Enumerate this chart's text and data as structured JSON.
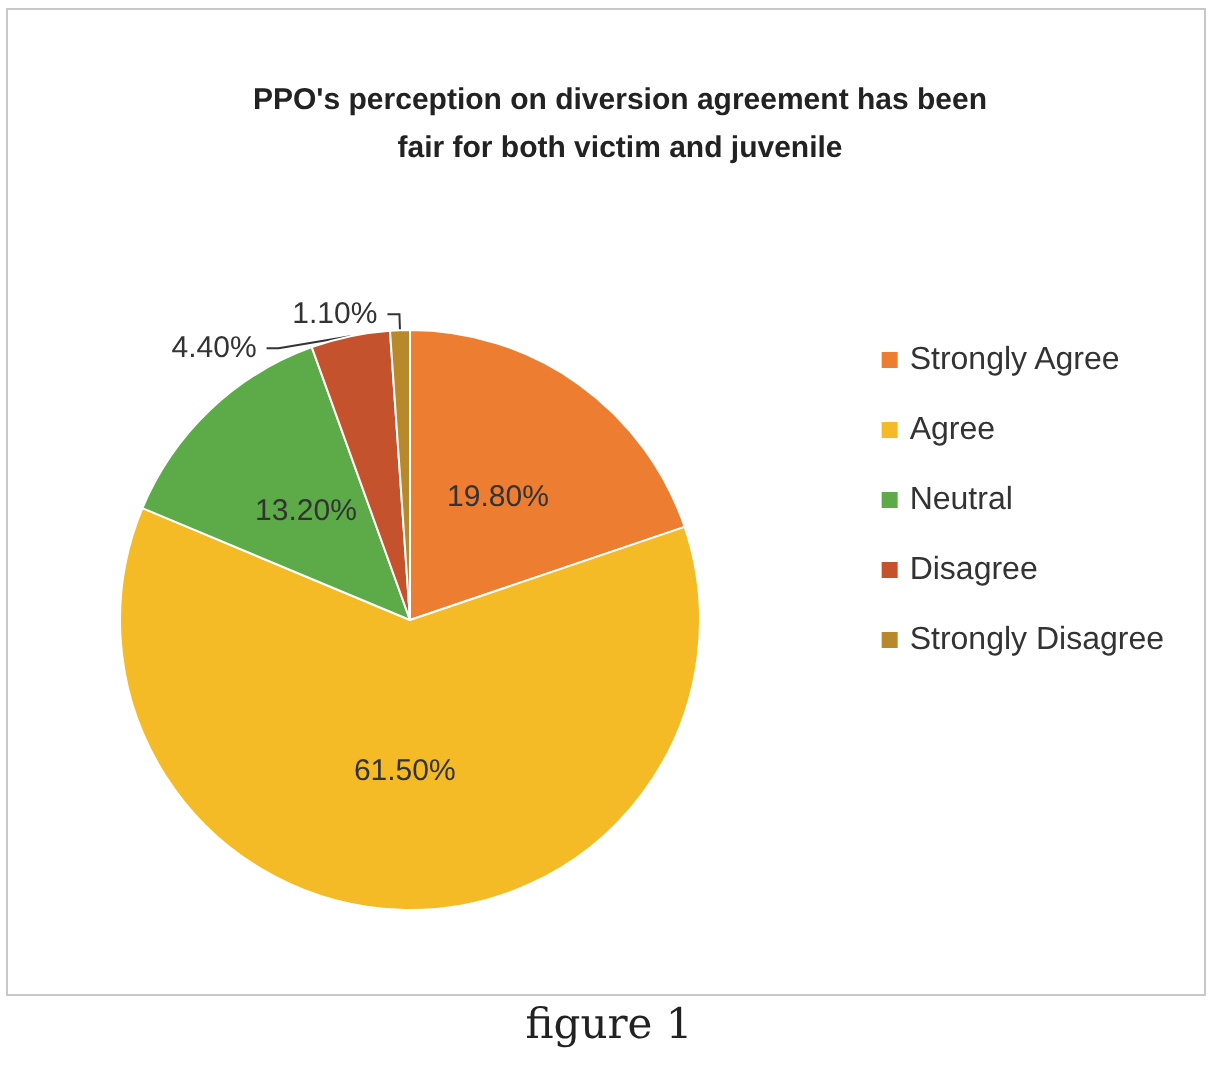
{
  "chart_data": {
    "type": "pie",
    "title": "PPO's perception on diversion agreement has been\nfair for both victim and juvenile",
    "categories": [
      "Strongly Agree",
      "Agree",
      "Neutral",
      "Disagree",
      "Strongly Disagree"
    ],
    "values": [
      19.8,
      61.5,
      13.2,
      4.4,
      1.1
    ],
    "value_labels": [
      "19.80%",
      "61.50%",
      "13.20%",
      "4.40%",
      "1.10%"
    ],
    "colors": [
      "#ed7d31",
      "#f4bb26",
      "#5cab48",
      "#c4522c",
      "#b8892a"
    ],
    "legend": "right",
    "annotations": [
      "figure 1"
    ]
  }
}
